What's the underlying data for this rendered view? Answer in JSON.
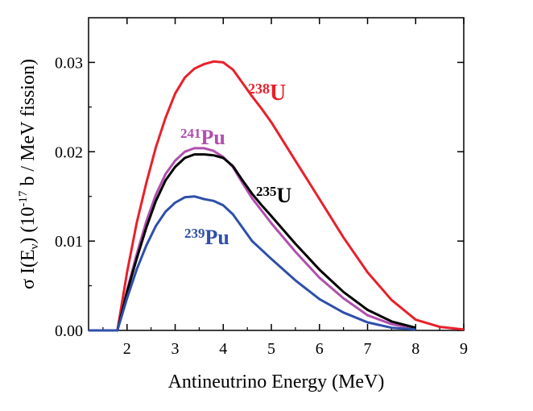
{
  "chart_data": {
    "type": "line",
    "xlabel": "Antineutrino Energy (MeV)",
    "ylabel": {
      "prefix": "σ I(E",
      "sub": "ν",
      "mid": ") (10",
      "sup": "-17",
      "suffix": " b / MeV fission)"
    },
    "xlim": [
      1.2,
      9
    ],
    "ylim": [
      0,
      0.035
    ],
    "xticks": [
      2,
      3,
      4,
      5,
      6,
      7,
      8,
      9
    ],
    "xtick_labels": [
      "2",
      "3",
      "4",
      "5",
      "6",
      "7",
      "8",
      "9"
    ],
    "yticks": [
      0,
      0.01,
      0.02,
      0.03
    ],
    "ytick_labels": [
      "0.00",
      "0.01",
      "0.02",
      "0.03"
    ],
    "grid": false,
    "legend": "none (curves labeled directly)",
    "series": [
      {
        "name": "238U",
        "label_sup": "238",
        "label_main": "U",
        "color": "#e8202a",
        "x": [
          1.2,
          1.8,
          2.0,
          2.2,
          2.4,
          2.6,
          2.8,
          3.0,
          3.2,
          3.4,
          3.6,
          3.8,
          4.0,
          4.2,
          4.4,
          4.6,
          4.8,
          5.0,
          5.5,
          6.0,
          6.5,
          7.0,
          7.5,
          8.0,
          8.5,
          9.0
        ],
        "y": [
          0.0,
          0.0,
          0.0065,
          0.012,
          0.0165,
          0.0205,
          0.0238,
          0.0265,
          0.0283,
          0.0293,
          0.0298,
          0.0301,
          0.03,
          0.0292,
          0.0277,
          0.0262,
          0.0248,
          0.0233,
          0.019,
          0.0147,
          0.0104,
          0.0065,
          0.0034,
          0.0012,
          0.0004,
          0.0001
        ]
      },
      {
        "name": "241Pu",
        "label_sup": "241",
        "label_main": "Pu",
        "color": "#b04fad",
        "x": [
          1.2,
          1.8,
          2.0,
          2.2,
          2.4,
          2.6,
          2.8,
          3.0,
          3.2,
          3.4,
          3.6,
          3.8,
          4.0,
          4.2,
          4.4,
          4.6,
          4.8,
          5.0,
          5.5,
          6.0,
          6.5,
          7.0,
          7.5,
          8.0
        ],
        "y": [
          0.0,
          0.0,
          0.0045,
          0.0085,
          0.0122,
          0.0152,
          0.0175,
          0.019,
          0.02,
          0.0204,
          0.0204,
          0.0201,
          0.0194,
          0.0183,
          0.0165,
          0.0148,
          0.0134,
          0.012,
          0.0088,
          0.0059,
          0.0036,
          0.0017,
          0.0007,
          0.0002
        ]
      },
      {
        "name": "235U",
        "label_sup": "235",
        "label_main": "U",
        "color": "#000000",
        "x": [
          1.2,
          1.8,
          2.0,
          2.2,
          2.4,
          2.6,
          2.8,
          3.0,
          3.2,
          3.4,
          3.6,
          3.8,
          4.0,
          4.2,
          4.4,
          4.6,
          4.8,
          5.0,
          5.5,
          6.0,
          6.5,
          7.0,
          7.5,
          8.0
        ],
        "y": [
          0.0,
          0.0,
          0.0043,
          0.008,
          0.0115,
          0.0145,
          0.0168,
          0.0183,
          0.0193,
          0.0197,
          0.0197,
          0.0196,
          0.0193,
          0.0184,
          0.0168,
          0.0153,
          0.014,
          0.0128,
          0.0097,
          0.0068,
          0.0043,
          0.0023,
          0.001,
          0.0003
        ]
      },
      {
        "name": "239Pu",
        "label_sup": "239",
        "label_main": "Pu",
        "color": "#2f4fa8",
        "x": [
          1.2,
          1.8,
          2.0,
          2.2,
          2.4,
          2.6,
          2.8,
          3.0,
          3.2,
          3.4,
          3.6,
          3.8,
          4.0,
          4.2,
          4.4,
          4.6,
          4.8,
          5.0,
          5.5,
          6.0,
          6.5,
          7.0,
          7.5,
          8.0
        ],
        "y": [
          0.0,
          0.0,
          0.0036,
          0.0068,
          0.0095,
          0.0117,
          0.0133,
          0.0143,
          0.0149,
          0.015,
          0.0147,
          0.0145,
          0.014,
          0.013,
          0.0115,
          0.01,
          0.009,
          0.008,
          0.0056,
          0.0035,
          0.002,
          0.0009,
          0.0003,
          0.0001
        ]
      }
    ]
  }
}
